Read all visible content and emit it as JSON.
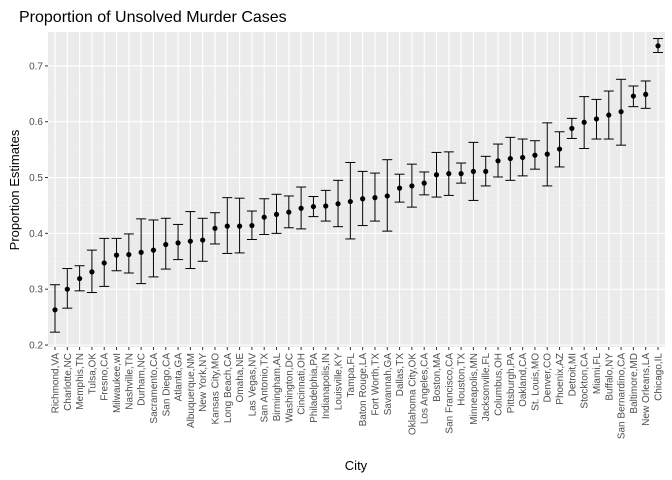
{
  "chart_data": {
    "type": "scatter",
    "title": "Proportion of Unsolved Murder Cases",
    "xlabel": "City",
    "ylabel": "Proportion Estimates",
    "ylim": [
      0.2,
      0.75
    ],
    "yticks": [
      0.2,
      0.3,
      0.4,
      0.5,
      0.6,
      0.7
    ],
    "grid": true,
    "legend": "none",
    "categories": [
      "Richmond,VA",
      "Charlotte,NC",
      "Memphis,TN",
      "Tulsa,OK",
      "Fresno,CA",
      "Milwaukee,wI",
      "Nashville,TN",
      "Durham,NC",
      "Sacramento,CA",
      "San Diego,CA",
      "Atlanta,GA",
      "Albuquerque,NM",
      "New York,NY",
      "Kansas City,MO",
      "Long Beach,CA",
      "Omaha,NE",
      "Las Vegas,NV",
      "San Antonio,TX",
      "Birmingham,AL",
      "Washington,DC",
      "Cincinnati,OH",
      "Philadelphia,PA",
      "Indianapolis,IN",
      "Louisville,KY",
      "Tampa,FL",
      "Baton Rouge,LA",
      "Fort Worth,TX",
      "Savannah,GA",
      "Dallas,TX",
      "Oklahoma City,OK",
      "Los Angeles,CA",
      "Boston,MA",
      "San Francisco,CA",
      "Houston,TX",
      "Minneapolis,MN",
      "Jacksonville,FL",
      "Columbus,OH",
      "Pittsburgh,PA",
      "Oakland,CA",
      "St. Louis,MO",
      "Denver,CO",
      "Phoenix,AZ",
      "Detroit,MI",
      "Stockton,CA",
      "Miami,FL",
      "Buffalo,NY",
      "San Bernardino,CA",
      "Baltimore,MD",
      "New Orleans,LA",
      "Chicago,IL"
    ],
    "series": [
      {
        "estimate": [
          0.263,
          0.3,
          0.319,
          0.331,
          0.347,
          0.361,
          0.362,
          0.366,
          0.37,
          0.38,
          0.383,
          0.386,
          0.388,
          0.409,
          0.413,
          0.413,
          0.414,
          0.429,
          0.434,
          0.438,
          0.445,
          0.448,
          0.449,
          0.453,
          0.457,
          0.462,
          0.464,
          0.467,
          0.481,
          0.485,
          0.49,
          0.505,
          0.507,
          0.507,
          0.511,
          0.511,
          0.53,
          0.534,
          0.536,
          0.54,
          0.542,
          0.551,
          0.588,
          0.599,
          0.605,
          0.612,
          0.618,
          0.646,
          0.649,
          0.736
        ],
        "lower": [
          0.223,
          0.266,
          0.297,
          0.294,
          0.305,
          0.333,
          0.329,
          0.31,
          0.322,
          0.336,
          0.353,
          0.337,
          0.35,
          0.381,
          0.364,
          0.365,
          0.389,
          0.398,
          0.4,
          0.41,
          0.408,
          0.43,
          0.422,
          0.412,
          0.39,
          0.414,
          0.422,
          0.404,
          0.456,
          0.447,
          0.469,
          0.465,
          0.468,
          0.49,
          0.459,
          0.485,
          0.501,
          0.495,
          0.503,
          0.515,
          0.485,
          0.519,
          0.57,
          0.552,
          0.569,
          0.569,
          0.558,
          0.627,
          0.624,
          0.724
        ],
        "upper": [
          0.308,
          0.337,
          0.342,
          0.37,
          0.391,
          0.391,
          0.399,
          0.426,
          0.424,
          0.427,
          0.416,
          0.439,
          0.427,
          0.437,
          0.464,
          0.463,
          0.44,
          0.462,
          0.47,
          0.467,
          0.483,
          0.466,
          0.477,
          0.495,
          0.527,
          0.511,
          0.508,
          0.532,
          0.506,
          0.524,
          0.51,
          0.545,
          0.546,
          0.526,
          0.563,
          0.538,
          0.56,
          0.572,
          0.569,
          0.566,
          0.598,
          0.582,
          0.606,
          0.645,
          0.64,
          0.655,
          0.676,
          0.664,
          0.673,
          0.749
        ]
      }
    ]
  }
}
